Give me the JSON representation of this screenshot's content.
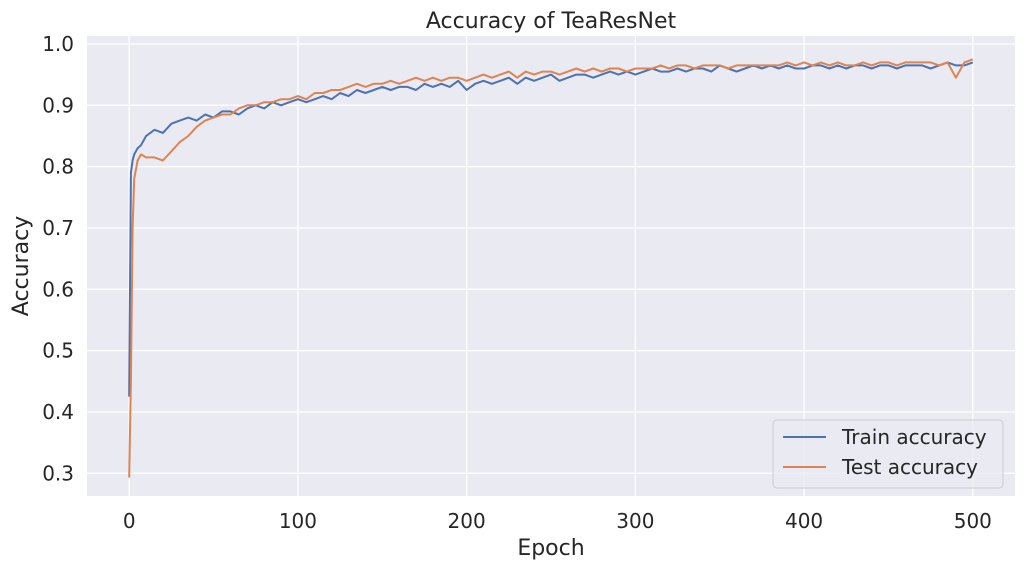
{
  "chart_data": {
    "type": "line",
    "title": "Accuracy of TeaResNet",
    "xlabel": "Epoch",
    "ylabel": "Accuracy",
    "xlim": [
      -25,
      525
    ],
    "ylim": [
      0.263,
      1.013
    ],
    "xticks": [
      0,
      100,
      200,
      300,
      400,
      500
    ],
    "yticks": [
      0.3,
      0.4,
      0.5,
      0.6,
      0.7,
      0.8,
      0.9,
      1.0
    ],
    "ytick_labels": [
      "0.3",
      "0.4",
      "0.5",
      "0.6",
      "0.7",
      "0.8",
      "0.9",
      "1.0"
    ],
    "grid": true,
    "legend_position": "bottom-right",
    "series": [
      {
        "name": "Train accuracy",
        "color": "#4c72b0",
        "x": [
          0,
          1,
          2,
          3,
          5,
          7,
          10,
          15,
          20,
          25,
          30,
          35,
          40,
          45,
          50,
          55,
          60,
          65,
          70,
          75,
          80,
          85,
          90,
          95,
          100,
          105,
          110,
          115,
          120,
          125,
          130,
          135,
          140,
          145,
          150,
          155,
          160,
          165,
          170,
          175,
          180,
          185,
          190,
          195,
          200,
          205,
          210,
          215,
          220,
          225,
          230,
          235,
          240,
          245,
          250,
          255,
          260,
          265,
          270,
          275,
          280,
          285,
          290,
          295,
          300,
          305,
          310,
          315,
          320,
          325,
          330,
          335,
          340,
          345,
          350,
          355,
          360,
          365,
          370,
          375,
          380,
          385,
          390,
          395,
          400,
          405,
          410,
          415,
          420,
          425,
          430,
          435,
          440,
          445,
          450,
          455,
          460,
          465,
          470,
          475,
          480,
          485,
          490,
          495,
          500
        ],
        "y": [
          0.425,
          0.79,
          0.81,
          0.82,
          0.83,
          0.835,
          0.85,
          0.86,
          0.855,
          0.87,
          0.875,
          0.88,
          0.875,
          0.885,
          0.88,
          0.89,
          0.89,
          0.885,
          0.895,
          0.9,
          0.895,
          0.905,
          0.9,
          0.905,
          0.91,
          0.905,
          0.91,
          0.915,
          0.91,
          0.92,
          0.915,
          0.925,
          0.92,
          0.925,
          0.93,
          0.925,
          0.93,
          0.93,
          0.925,
          0.935,
          0.93,
          0.935,
          0.93,
          0.94,
          0.925,
          0.935,
          0.94,
          0.935,
          0.94,
          0.945,
          0.935,
          0.945,
          0.94,
          0.945,
          0.95,
          0.94,
          0.945,
          0.95,
          0.95,
          0.945,
          0.95,
          0.955,
          0.95,
          0.955,
          0.95,
          0.955,
          0.96,
          0.955,
          0.955,
          0.96,
          0.955,
          0.96,
          0.96,
          0.955,
          0.965,
          0.96,
          0.955,
          0.96,
          0.965,
          0.96,
          0.965,
          0.96,
          0.965,
          0.96,
          0.96,
          0.965,
          0.965,
          0.96,
          0.965,
          0.96,
          0.965,
          0.965,
          0.96,
          0.965,
          0.965,
          0.96,
          0.965,
          0.965,
          0.965,
          0.96,
          0.965,
          0.97,
          0.965,
          0.965,
          0.97
        ]
      },
      {
        "name": "Test accuracy",
        "color": "#dd8452",
        "x": [
          0,
          1,
          2,
          3,
          5,
          7,
          10,
          15,
          20,
          25,
          30,
          35,
          40,
          45,
          50,
          55,
          60,
          65,
          70,
          75,
          80,
          85,
          90,
          95,
          100,
          105,
          110,
          115,
          120,
          125,
          130,
          135,
          140,
          145,
          150,
          155,
          160,
          165,
          170,
          175,
          180,
          185,
          190,
          195,
          200,
          205,
          210,
          215,
          220,
          225,
          230,
          235,
          240,
          245,
          250,
          255,
          260,
          265,
          270,
          275,
          280,
          285,
          290,
          295,
          300,
          305,
          310,
          315,
          320,
          325,
          330,
          335,
          340,
          345,
          350,
          355,
          360,
          365,
          370,
          375,
          380,
          385,
          390,
          395,
          400,
          405,
          410,
          415,
          420,
          425,
          430,
          435,
          440,
          445,
          450,
          455,
          460,
          465,
          470,
          475,
          480,
          485,
          490,
          495,
          500
        ],
        "y": [
          0.293,
          0.45,
          0.7,
          0.78,
          0.81,
          0.82,
          0.815,
          0.815,
          0.81,
          0.825,
          0.84,
          0.85,
          0.865,
          0.875,
          0.88,
          0.885,
          0.885,
          0.895,
          0.9,
          0.9,
          0.905,
          0.905,
          0.91,
          0.91,
          0.915,
          0.91,
          0.92,
          0.92,
          0.925,
          0.925,
          0.93,
          0.935,
          0.93,
          0.935,
          0.935,
          0.94,
          0.935,
          0.94,
          0.945,
          0.94,
          0.945,
          0.94,
          0.945,
          0.945,
          0.94,
          0.945,
          0.95,
          0.945,
          0.95,
          0.955,
          0.945,
          0.955,
          0.95,
          0.955,
          0.955,
          0.95,
          0.955,
          0.96,
          0.955,
          0.96,
          0.955,
          0.96,
          0.96,
          0.955,
          0.96,
          0.96,
          0.96,
          0.965,
          0.96,
          0.965,
          0.965,
          0.96,
          0.965,
          0.965,
          0.965,
          0.96,
          0.965,
          0.965,
          0.965,
          0.965,
          0.965,
          0.965,
          0.97,
          0.965,
          0.97,
          0.965,
          0.97,
          0.965,
          0.97,
          0.965,
          0.965,
          0.97,
          0.965,
          0.97,
          0.97,
          0.965,
          0.97,
          0.97,
          0.97,
          0.97,
          0.965,
          0.97,
          0.945,
          0.97,
          0.975
        ]
      }
    ]
  }
}
